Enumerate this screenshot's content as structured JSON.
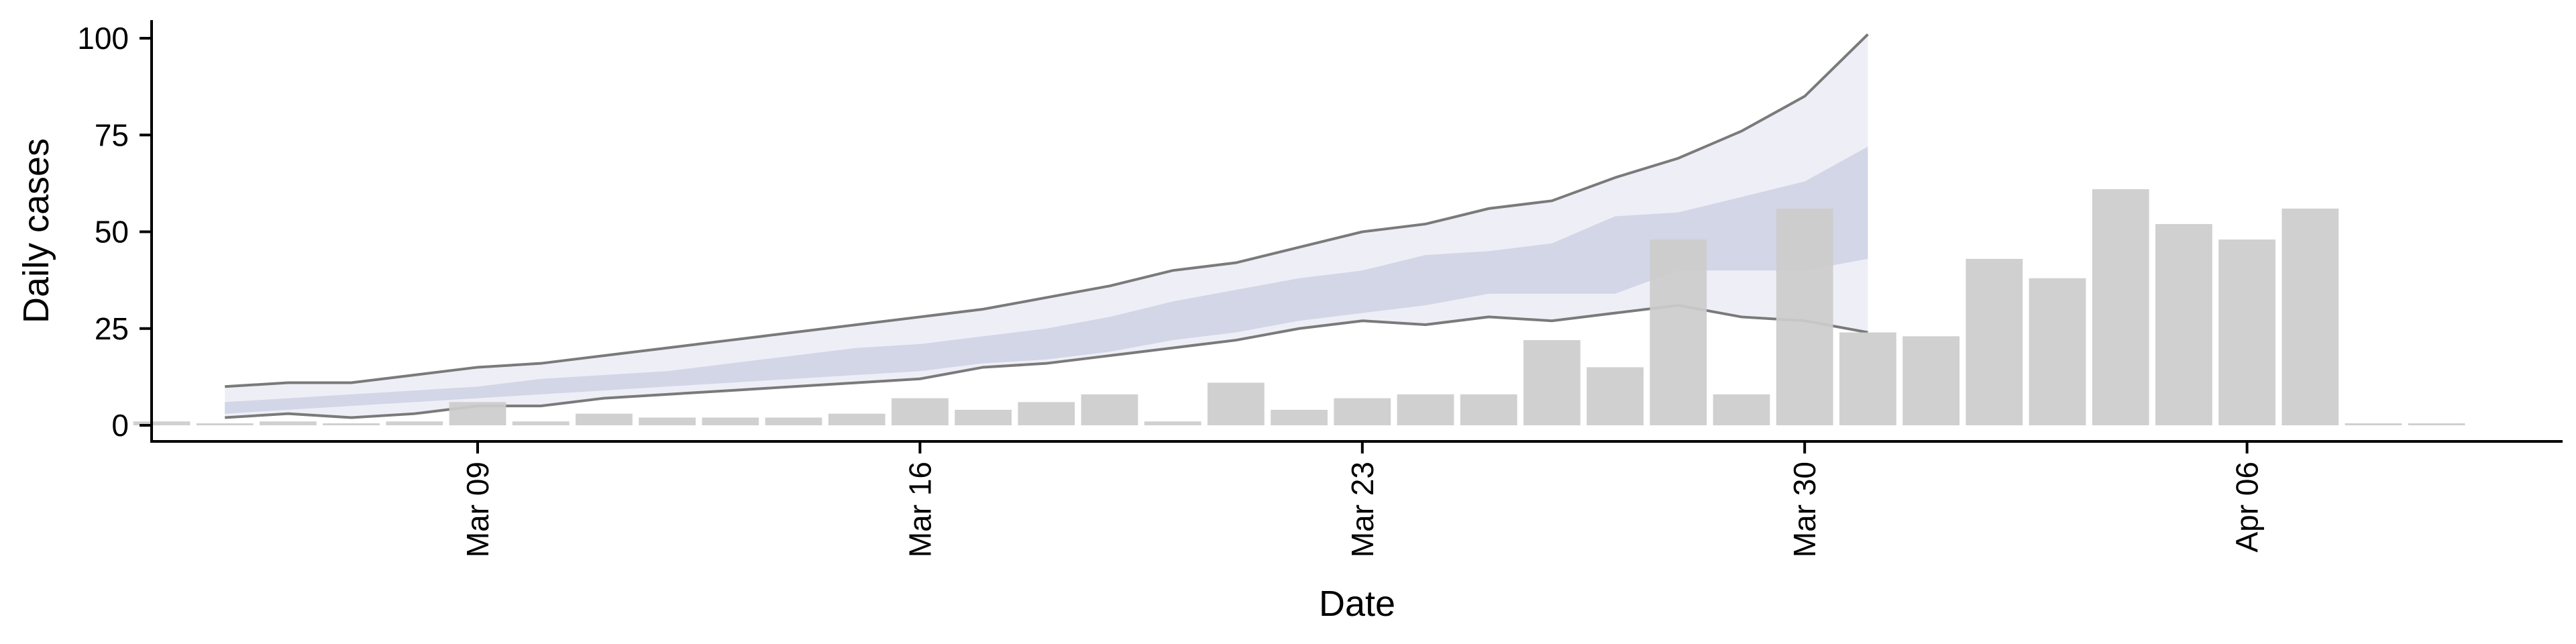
{
  "chart_data": {
    "type": "bar",
    "xlabel": "Date",
    "ylabel": "Daily cases",
    "x_ticks": [
      "2020-03-09",
      "2020-03-16",
      "2020-03-23",
      "2020-03-30",
      "2020-04-06"
    ],
    "x_tick_labels": [
      "Mar 09",
      "Mar 16",
      "Mar 23",
      "Mar 30",
      "Apr 06"
    ],
    "y_ticks": [
      0,
      25,
      50,
      75,
      100
    ],
    "xlim": [
      "2020-03-03",
      "2020-04-11"
    ],
    "ylim": [
      -5,
      107
    ],
    "grid": false,
    "bars": {
      "dates": [
        "2020-03-04",
        "2020-03-05",
        "2020-03-06",
        "2020-03-07",
        "2020-03-08",
        "2020-03-09",
        "2020-03-10",
        "2020-03-11",
        "2020-03-12",
        "2020-03-13",
        "2020-03-14",
        "2020-03-15",
        "2020-03-16",
        "2020-03-17",
        "2020-03-18",
        "2020-03-19",
        "2020-03-20",
        "2020-03-21",
        "2020-03-22",
        "2020-03-23",
        "2020-03-24",
        "2020-03-25",
        "2020-03-26",
        "2020-03-27",
        "2020-03-28",
        "2020-03-29",
        "2020-03-30",
        "2020-03-31",
        "2020-04-01",
        "2020-04-02",
        "2020-04-03",
        "2020-04-04",
        "2020-04-05",
        "2020-04-06",
        "2020-04-07",
        "2020-04-08",
        "2020-04-09"
      ],
      "values": [
        1,
        0,
        1,
        0,
        1,
        6,
        1,
        3,
        2,
        2,
        2,
        3,
        7,
        4,
        6,
        8,
        1,
        11,
        4,
        7,
        8,
        8,
        22,
        15,
        48,
        8,
        56,
        24,
        23,
        43,
        38,
        61,
        52,
        48,
        56,
        0,
        0
      ],
      "color": "#cccccc"
    },
    "forecast": {
      "dates": [
        "2020-03-05",
        "2020-03-06",
        "2020-03-07",
        "2020-03-08",
        "2020-03-09",
        "2020-03-10",
        "2020-03-11",
        "2020-03-12",
        "2020-03-13",
        "2020-03-14",
        "2020-03-15",
        "2020-03-16",
        "2020-03-17",
        "2020-03-18",
        "2020-03-19",
        "2020-03-20",
        "2020-03-21",
        "2020-03-22",
        "2020-03-23",
        "2020-03-24",
        "2020-03-25",
        "2020-03-26",
        "2020-03-27",
        "2020-03-28",
        "2020-03-29",
        "2020-03-30",
        "2020-03-31"
      ],
      "upper": [
        10,
        11,
        11,
        13,
        15,
        16,
        18,
        20,
        22,
        24,
        26,
        28,
        30,
        33,
        36,
        40,
        42,
        46,
        50,
        52,
        56,
        58,
        64,
        69,
        76,
        85,
        101
      ],
      "lower": [
        2,
        3,
        2,
        3,
        5,
        5,
        7,
        8,
        9,
        10,
        11,
        12,
        15,
        16,
        18,
        20,
        22,
        25,
        27,
        26,
        28,
        27,
        29,
        31,
        28,
        27,
        24
      ],
      "mid_upper": [
        6,
        7,
        8,
        9,
        10,
        12,
        13,
        14,
        16,
        18,
        20,
        21,
        23,
        25,
        28,
        32,
        35,
        38,
        40,
        44,
        45,
        47,
        54,
        55,
        59,
        63,
        72
      ],
      "mid_lower": [
        3,
        4,
        5,
        6,
        7,
        8,
        9,
        10,
        11,
        12,
        13,
        14,
        16,
        17,
        19,
        22,
        24,
        27,
        29,
        31,
        34,
        34,
        34,
        40,
        40,
        40,
        43
      ],
      "band_outer_color": "#eeeff6",
      "band_inner_color": "#c9cde2",
      "line_color": "#7a7a7a"
    }
  }
}
